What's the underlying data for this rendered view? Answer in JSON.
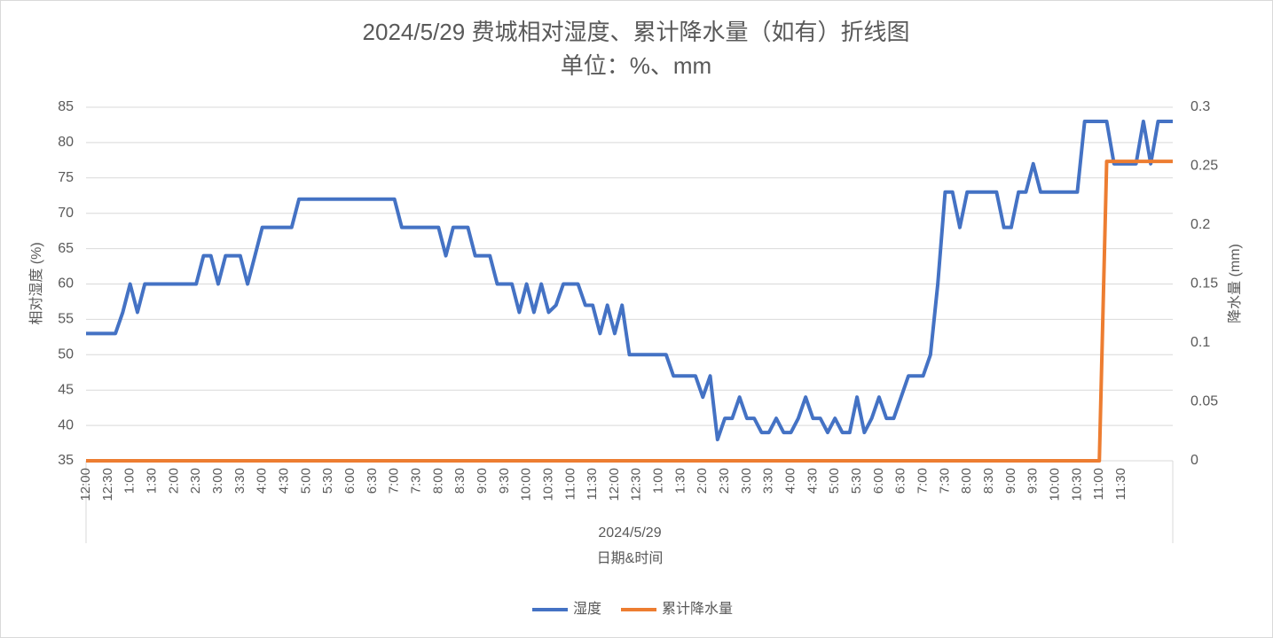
{
  "chart_data": {
    "type": "line",
    "title": "2024/5/29 费城相对湿度、累计降水量（如有）折线图",
    "subtitle": "单位：%、mm",
    "y_label": "相对湿度 (%)",
    "y2_label": "降水量 (mm)",
    "x_group_label": "2024/5/29",
    "x_label": "日期&时间",
    "categories": [
      "12:00",
      null,
      null,
      "12:30",
      null,
      null,
      "1:00",
      null,
      null,
      "1:30",
      null,
      null,
      "2:00",
      null,
      null,
      "2:30",
      null,
      null,
      "3:00",
      null,
      null,
      "3:30",
      null,
      null,
      "4:00",
      null,
      null,
      "4:30",
      null,
      null,
      "5:00",
      null,
      null,
      "5:30",
      null,
      null,
      "6:00",
      null,
      null,
      "6:30",
      null,
      null,
      "7:00",
      null,
      null,
      "7:30",
      null,
      null,
      "8:00",
      null,
      null,
      "8:30",
      null,
      null,
      "9:00",
      null,
      null,
      "9:30",
      null,
      null,
      "10:00",
      null,
      null,
      "10:30",
      null,
      null,
      "11:00",
      null,
      null,
      "11:30",
      null,
      null,
      "12:00",
      null,
      null,
      "12:30",
      null,
      null,
      "1:00",
      null,
      null,
      "1:30",
      null,
      null,
      "2:00",
      null,
      null,
      "2:30",
      null,
      null,
      "3:00",
      null,
      null,
      "3:30",
      null,
      null,
      "4:00",
      null,
      null,
      "4:30",
      null,
      null,
      "5:00",
      null,
      null,
      "5:30",
      null,
      null,
      "6:00",
      null,
      null,
      "6:30",
      null,
      null,
      "7:00",
      null,
      null,
      "7:30",
      null,
      null,
      "8:00",
      null,
      null,
      "8:30",
      null,
      null,
      "9:00",
      null,
      null,
      "9:30",
      null,
      null,
      "10:00",
      null,
      null,
      "10:30",
      null,
      null,
      "11:00",
      null,
      null,
      "11:30",
      null,
      null,
      null,
      null,
      null,
      null,
      null
    ],
    "series": [
      {
        "name": "湿度",
        "color": "#4472c4",
        "values": [
          53,
          53,
          53,
          53,
          53,
          56,
          60,
          56,
          60,
          60,
          60,
          60,
          60,
          60,
          60,
          60,
          64,
          64,
          60,
          64,
          64,
          64,
          60,
          64,
          68,
          68,
          68,
          68,
          68,
          72,
          72,
          72,
          72,
          72,
          72,
          72,
          72,
          72,
          72,
          72,
          72,
          72,
          72,
          68,
          68,
          68,
          68,
          68,
          68,
          64,
          68,
          68,
          68,
          64,
          64,
          64,
          60,
          60,
          60,
          56,
          60,
          56,
          60,
          56,
          57,
          60,
          60,
          60,
          57,
          57,
          53,
          57,
          53,
          57,
          50,
          50,
          50,
          50,
          50,
          50,
          47,
          47,
          47,
          47,
          44,
          47,
          38,
          41,
          41,
          44,
          41,
          41,
          39,
          39,
          41,
          39,
          39,
          41,
          44,
          41,
          41,
          39,
          41,
          39,
          39,
          44,
          39,
          41,
          44,
          41,
          41,
          44,
          47,
          47,
          47,
          50,
          60,
          73,
          73,
          68,
          73,
          73,
          73,
          73,
          73,
          68,
          68,
          73,
          73,
          77,
          73,
          73,
          73,
          73,
          73,
          73,
          83,
          83,
          83,
          83,
          77,
          77,
          77,
          77,
          83,
          77,
          83,
          83,
          83
        ]
      },
      {
        "name": "累计降水量",
        "color": "#ed7d31",
        "axis": "y2",
        "values": [
          0,
          0,
          0,
          0,
          0,
          0,
          0,
          0,
          0,
          0,
          0,
          0,
          0,
          0,
          0,
          0,
          0,
          0,
          0,
          0,
          0,
          0,
          0,
          0,
          0,
          0,
          0,
          0,
          0,
          0,
          0,
          0,
          0,
          0,
          0,
          0,
          0,
          0,
          0,
          0,
          0,
          0,
          0,
          0,
          0,
          0,
          0,
          0,
          0,
          0,
          0,
          0,
          0,
          0,
          0,
          0,
          0,
          0,
          0,
          0,
          0,
          0,
          0,
          0,
          0,
          0,
          0,
          0,
          0,
          0,
          0,
          0,
          0,
          0,
          0,
          0,
          0,
          0,
          0,
          0,
          0,
          0,
          0,
          0,
          0,
          0,
          0,
          0,
          0,
          0,
          0,
          0,
          0,
          0,
          0,
          0,
          0,
          0,
          0,
          0,
          0,
          0,
          0,
          0,
          0,
          0,
          0,
          0,
          0,
          0,
          0,
          0,
          0,
          0,
          0,
          0,
          0,
          0,
          0,
          0,
          0,
          0,
          0,
          0,
          0,
          0,
          0,
          0,
          0,
          0,
          0,
          0,
          0,
          0,
          0,
          0,
          0,
          0,
          0,
          0.254,
          0.254,
          0.254,
          0.254,
          0.254,
          0.254,
          0.254,
          0.254,
          0.254,
          0.254
        ]
      }
    ],
    "ylim": [
      35,
      85
    ],
    "yticks": [
      35,
      40,
      45,
      50,
      55,
      60,
      65,
      70,
      75,
      80,
      85
    ],
    "y2lim": [
      0,
      0.3
    ],
    "y2ticks": [
      0,
      0.05,
      0.1,
      0.15,
      0.2,
      0.25,
      0.3
    ],
    "grid": true,
    "legend": "bottom"
  }
}
